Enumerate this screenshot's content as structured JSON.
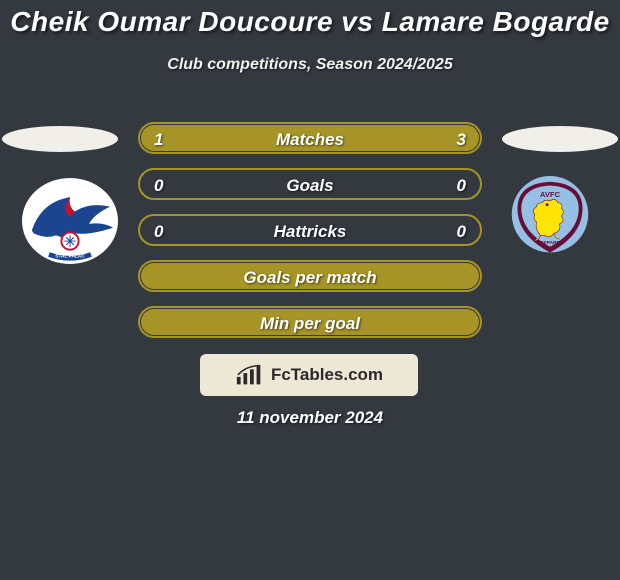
{
  "background_color": "#34393f",
  "title": {
    "text": "Cheik Oumar Doucoure vs Lamare Bogarde",
    "font_size": 28,
    "color": "#ffffff"
  },
  "subtitle": {
    "text": "Club competitions, Season 2024/2025",
    "font_size": 16,
    "color": "#f1f1ef"
  },
  "players": {
    "left": {
      "ellipse_color": "#f0efe9"
    },
    "right": {
      "ellipse_color": "#f0efe9"
    }
  },
  "bars": {
    "border_color": "#a69426",
    "fill_color": "#a69426",
    "text_color": "#ffffff",
    "label_font_size": 17,
    "value_font_size": 17,
    "max_value": 4,
    "rows": [
      {
        "label": "Matches",
        "left": "1",
        "right": "3",
        "fill_fraction": 1.0
      },
      {
        "label": "Goals",
        "left": "0",
        "right": "0",
        "fill_fraction": 0.0
      },
      {
        "label": "Hattricks",
        "left": "0",
        "right": "0",
        "fill_fraction": 0.0
      },
      {
        "label": "Goals per match",
        "left": "",
        "right": "",
        "fill_fraction": 1.0
      },
      {
        "label": "Min per goal",
        "left": "",
        "right": "",
        "fill_fraction": 1.0
      }
    ]
  },
  "branding": {
    "background_color": "#ede7d6",
    "text_color": "#2a2a2a",
    "text": "FcTables.com",
    "font_size": 17
  },
  "date": {
    "text": "11 november 2024",
    "font_size": 17,
    "color": "#ffffff"
  },
  "crests": {
    "left": {
      "name": "Crystal Palace",
      "colors": {
        "bg": "#ffffff",
        "primary": "#1b458f",
        "secondary": "#c4122e",
        "accent": "#a7a9ac"
      }
    },
    "right": {
      "name": "Aston Villa",
      "colors": {
        "bg": "#95bfe5",
        "primary": "#670e36",
        "lion": "#fee505"
      }
    }
  }
}
